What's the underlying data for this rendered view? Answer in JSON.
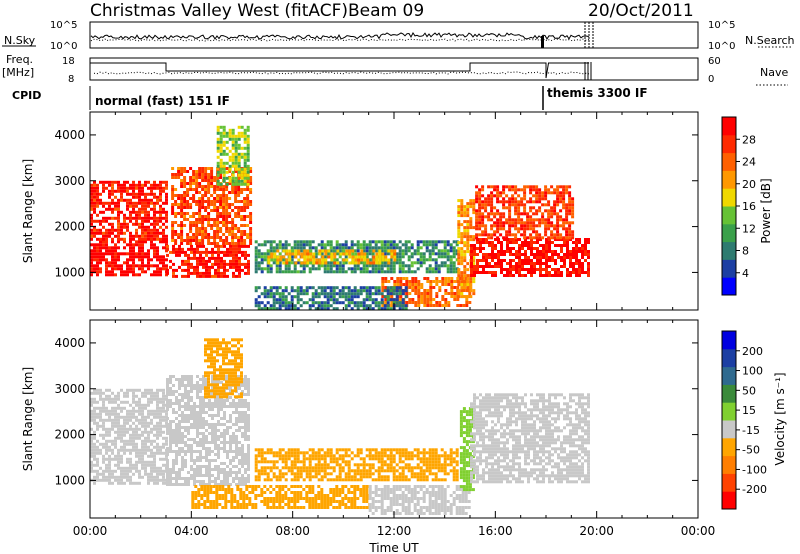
{
  "header": {
    "title": "Christmas Valley West (fitACF)",
    "beam": "Beam 09",
    "date": "20/Oct/2011"
  },
  "strips": {
    "nsky_label": "N.Sky",
    "nsearch_label": "N.Search",
    "noise_ticks": [
      "10^5",
      "10^0"
    ],
    "freq_label": "Freq.",
    "freq_unit": "[MHz]",
    "freq_ticks": [
      "18",
      "8"
    ],
    "nave_label": "Nave",
    "nave_ticks": [
      "60",
      "0"
    ],
    "cpid_label": "CPID",
    "cpid_modes": [
      {
        "name": "normal (fast) 151 IF",
        "start_hour": 0
      },
      {
        "name": "themis 3300 IF",
        "start_hour": 18
      }
    ]
  },
  "time_axis": {
    "label": "Time UT",
    "ticks": [
      "00:00",
      "04:00",
      "08:00",
      "12:00",
      "16:00",
      "20:00",
      "00:00"
    ]
  },
  "colors": {
    "power": [
      "#0000ff",
      "#1c3fa3",
      "#2e7b70",
      "#3aa04a",
      "#66c235",
      "#f0d800",
      "#ff9800",
      "#ff6000",
      "#ff2a00",
      "#ff0000"
    ],
    "velocity": [
      "#ff0000",
      "#ff4200",
      "#ff7e00",
      "#ffa500",
      "#c8c8c8",
      "#80d030",
      "#3a8a3a",
      "#2f6a8f",
      "#1c3fa3",
      "#0000e0"
    ]
  },
  "chart_data": [
    {
      "type": "heatmap",
      "title": "",
      "xlabel": "",
      "ylabel": "Slant Range [km]",
      "xlim": [
        0,
        24
      ],
      "ylim": [
        180,
        4500
      ],
      "y_ticks": [
        "1000",
        "2000",
        "3000",
        "4000"
      ],
      "colorbar": {
        "label": "Power [dB]",
        "ticks": [
          "4",
          "8",
          "12",
          "16",
          "20",
          "24",
          "28"
        ],
        "range": [
          0,
          30
        ]
      },
      "regions": [
        {
          "t0": 0,
          "t1": 3,
          "r0": 950,
          "r1": 1700,
          "value": 29
        },
        {
          "t0": 0,
          "t1": 3,
          "r0": 1700,
          "r1": 3000,
          "value": 27
        },
        {
          "t0": 3,
          "t1": 6.2,
          "r0": 900,
          "r1": 1600,
          "value": 27
        },
        {
          "t0": 3.2,
          "t1": 6.3,
          "r0": 1600,
          "r1": 3300,
          "value": 24
        },
        {
          "t0": 5,
          "t1": 6.2,
          "r0": 2900,
          "r1": 4200,
          "value": 14
        },
        {
          "t0": 6.5,
          "t1": 14.5,
          "r0": 1000,
          "r1": 1700,
          "value": 9
        },
        {
          "t0": 7,
          "t1": 12,
          "r0": 1200,
          "r1": 1500,
          "value": 18
        },
        {
          "t0": 11.5,
          "t1": 15,
          "r0": 250,
          "r1": 900,
          "value": 22
        },
        {
          "t0": 6.5,
          "t1": 12.5,
          "r0": 200,
          "r1": 700,
          "value": 7
        },
        {
          "t0": 14.5,
          "t1": 15.1,
          "r0": 500,
          "r1": 2600,
          "value": 20
        },
        {
          "t0": 15,
          "t1": 19.7,
          "r0": 950,
          "r1": 1750,
          "value": 28
        },
        {
          "t0": 15.2,
          "t1": 19,
          "r0": 1750,
          "r1": 2900,
          "value": 25
        }
      ]
    },
    {
      "type": "heatmap",
      "title": "",
      "xlabel": "Time UT",
      "ylabel": "Slant Range [km]",
      "xlim": [
        0,
        24
      ],
      "ylim": [
        180,
        4500
      ],
      "y_ticks": [
        "1000",
        "2000",
        "3000",
        "4000"
      ],
      "colorbar": {
        "label": "Velocity [m s⁻¹]",
        "ticks": [
          "-200",
          "-100",
          "-50",
          "-15",
          "15",
          "50",
          "100",
          "200"
        ],
        "edges": [
          -250,
          -200,
          -100,
          -50,
          -15,
          15,
          50,
          100,
          200,
          250
        ]
      },
      "regions": [
        {
          "t0": 0,
          "t1": 3,
          "r0": 950,
          "r1": 3000,
          "value": 0
        },
        {
          "t0": 3,
          "t1": 6.3,
          "r0": 900,
          "r1": 3300,
          "value": 0
        },
        {
          "t0": 4.5,
          "t1": 6,
          "r0": 2800,
          "r1": 4100,
          "value": -30
        },
        {
          "t0": 6.5,
          "t1": 14.5,
          "r0": 1000,
          "r1": 1700,
          "value": -30
        },
        {
          "t0": 4,
          "t1": 11,
          "r0": 400,
          "r1": 900,
          "value": -30
        },
        {
          "t0": 11,
          "t1": 15,
          "r0": 250,
          "r1": 900,
          "value": 0
        },
        {
          "t0": 14.6,
          "t1": 15.1,
          "r0": 800,
          "r1": 2600,
          "value": 30
        },
        {
          "t0": 15,
          "t1": 19.7,
          "r0": 950,
          "r1": 2900,
          "value": 0
        }
      ]
    }
  ]
}
